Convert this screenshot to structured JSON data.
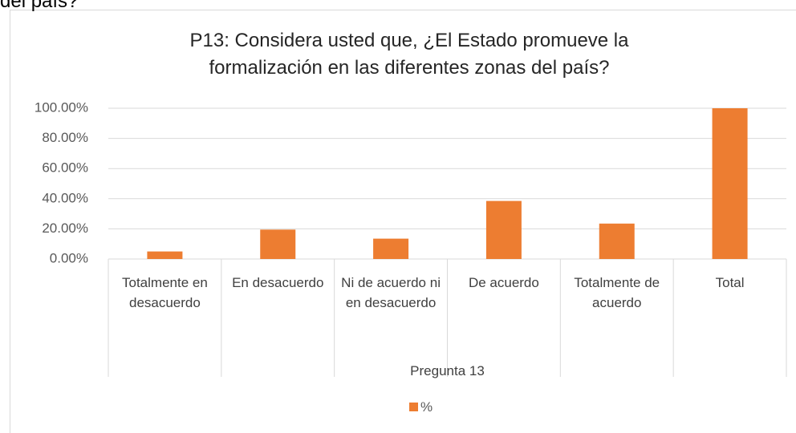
{
  "page_fragment": "del país?",
  "chart_data": {
    "type": "bar",
    "title": "P13: Considera usted que, ¿El Estado promueve la formalización en las diferentes zonas del país?",
    "x_label": "Pregunta 13",
    "categories": [
      "Totalmente en desacuerdo",
      "En desacuerdo",
      "Ni de acuerdo ni en desacuerdo",
      "De acuerdo",
      "Totalmente de acuerdo",
      "Total"
    ],
    "series": [
      {
        "name": "%",
        "color": "#ed7d31",
        "values": [
          5,
          19.5,
          13.5,
          38.5,
          23.5,
          100
        ]
      }
    ],
    "ylim": [
      0,
      100
    ],
    "yticks": [
      {
        "value": 0,
        "label": "0.00%"
      },
      {
        "value": 20,
        "label": "20.00%"
      },
      {
        "value": 40,
        "label": "40.00%"
      },
      {
        "value": 60,
        "label": "60.00%"
      },
      {
        "value": 80,
        "label": "80.00%"
      },
      {
        "value": 100,
        "label": "100.00%"
      }
    ],
    "grid": true,
    "legend": "bottom"
  }
}
